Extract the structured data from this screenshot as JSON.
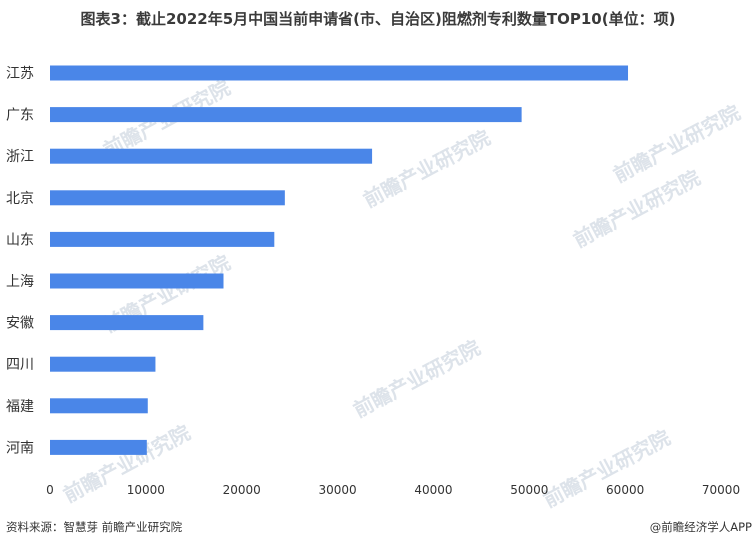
{
  "title": "图表3：截止2022年5月中国当前申请省(市、自治区)阻燃剂专利数量TOP10(单位：项)",
  "chart_data": {
    "type": "bar",
    "orientation": "horizontal",
    "categories": [
      "江苏",
      "广东",
      "浙江",
      "北京",
      "山东",
      "上海",
      "安徽",
      "四川",
      "福建",
      "河南"
    ],
    "values": [
      60300,
      49200,
      33600,
      24500,
      23400,
      18100,
      16000,
      11000,
      10200,
      10100
    ],
    "xlim": [
      0,
      70000
    ],
    "xticks": [
      0,
      10000,
      20000,
      30000,
      40000,
      50000,
      60000,
      70000
    ],
    "grid": false,
    "bar_color": "#4a86e8"
  },
  "watermark": {
    "text_main": "前瞻产业研究院",
    "color": "#dde3ea"
  },
  "footer": {
    "source": "资料来源：智慧芽 前瞻产业研究院",
    "credit": "@前瞻经济学人APP"
  }
}
